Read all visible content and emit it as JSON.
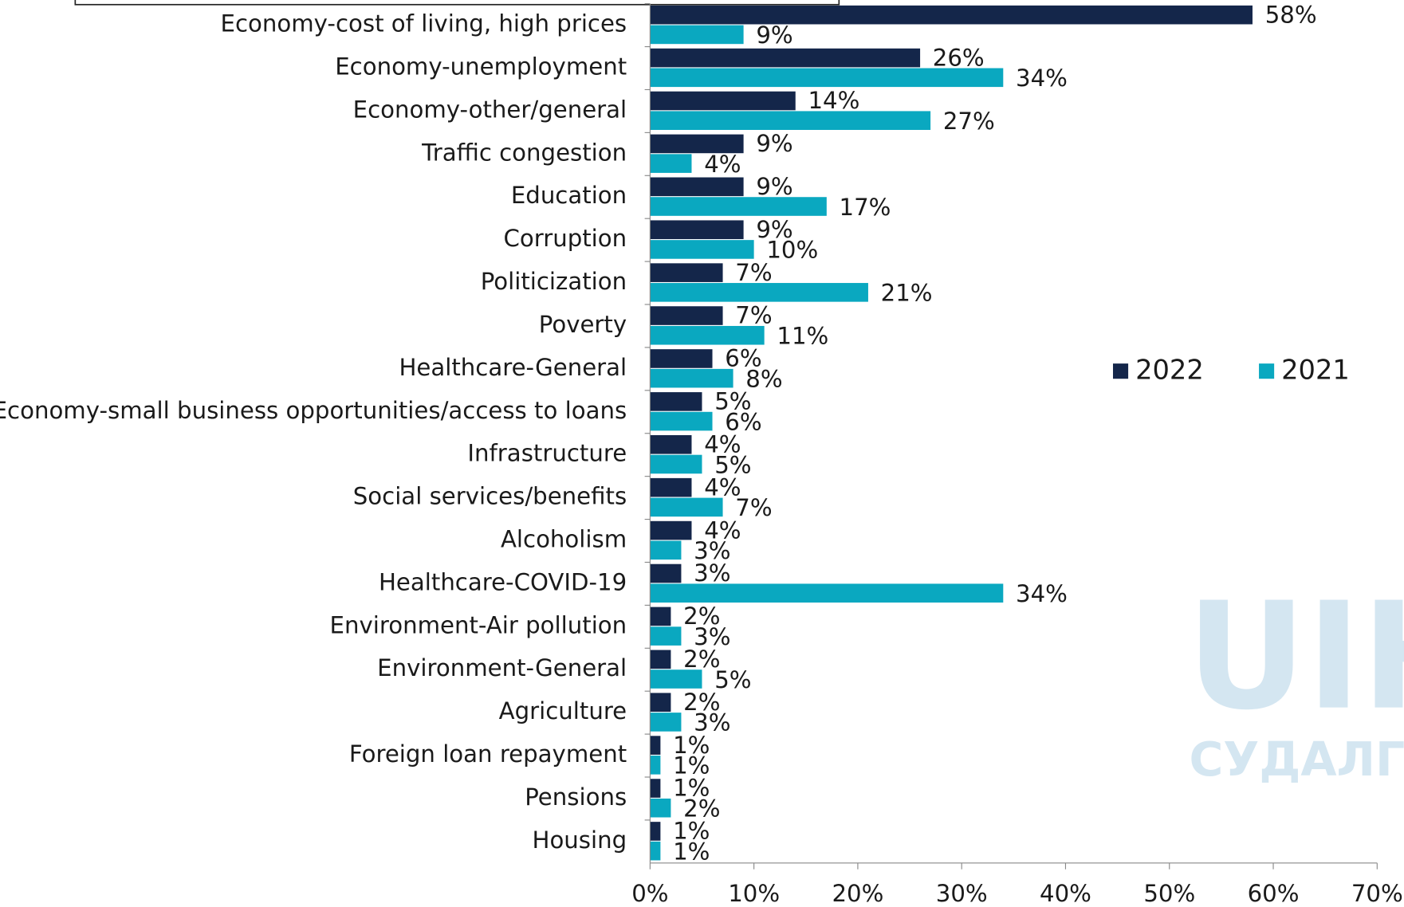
{
  "chart_data": {
    "type": "bar",
    "orientation": "horizontal",
    "categories": [
      "Economy-cost of living, high prices",
      "Economy-unemployment",
      "Economy-other/general",
      "Traffic congestion",
      "Education",
      "Corruption",
      "Politicization",
      "Poverty",
      "Healthcare-General",
      "Economy-small business opportunities/access to loans",
      "Infrastructure",
      "Social services/benefits",
      "Alcoholism",
      "Healthcare-COVID-19",
      "Environment-Air pollution",
      "Environment-General",
      "Agriculture",
      "Foreign loan repayment",
      "Pensions",
      "Housing"
    ],
    "series": [
      {
        "name": "2022",
        "color": "#14264a",
        "values": [
          58,
          26,
          14,
          9,
          9,
          9,
          7,
          7,
          6,
          5,
          4,
          4,
          4,
          3,
          2,
          2,
          2,
          1,
          1,
          1
        ],
        "value_labels": [
          "58%",
          "26%",
          "14%",
          "9%",
          "9%",
          "9%",
          "7%",
          "7%",
          "6%",
          "5%",
          "4%",
          "4%",
          "4%",
          "3%",
          "2%",
          "2%",
          "2%",
          "1%",
          "1%",
          "1%"
        ]
      },
      {
        "name": "2021",
        "color": "#0aa8c0",
        "values": [
          9,
          34,
          27,
          4,
          17,
          10,
          21,
          11,
          8,
          6,
          5,
          7,
          3,
          34,
          3,
          5,
          3,
          1,
          2,
          1
        ],
        "value_labels": [
          "9%",
          "34%",
          "27%",
          "4%",
          "17%",
          "10%",
          "21%",
          "11%",
          "8%",
          "6%",
          "5%",
          "7%",
          "3%",
          "34%",
          "3%",
          "5%",
          "3%",
          "1%",
          "2%",
          "1%"
        ]
      }
    ],
    "xlim": [
      0,
      70
    ],
    "xticks": [
      {
        "value": 0,
        "label": "0%"
      },
      {
        "value": 10,
        "label": "10%"
      },
      {
        "value": 20,
        "label": "20%"
      },
      {
        "value": 30,
        "label": "30%"
      },
      {
        "value": 40,
        "label": "40%"
      },
      {
        "value": 50,
        "label": "50%"
      },
      {
        "value": 60,
        "label": "60%"
      },
      {
        "value": 70,
        "label": "70%"
      }
    ],
    "legend": "right",
    "watermark": [
      "UIH.M",
      "СУДАЛГААН"
    ]
  }
}
